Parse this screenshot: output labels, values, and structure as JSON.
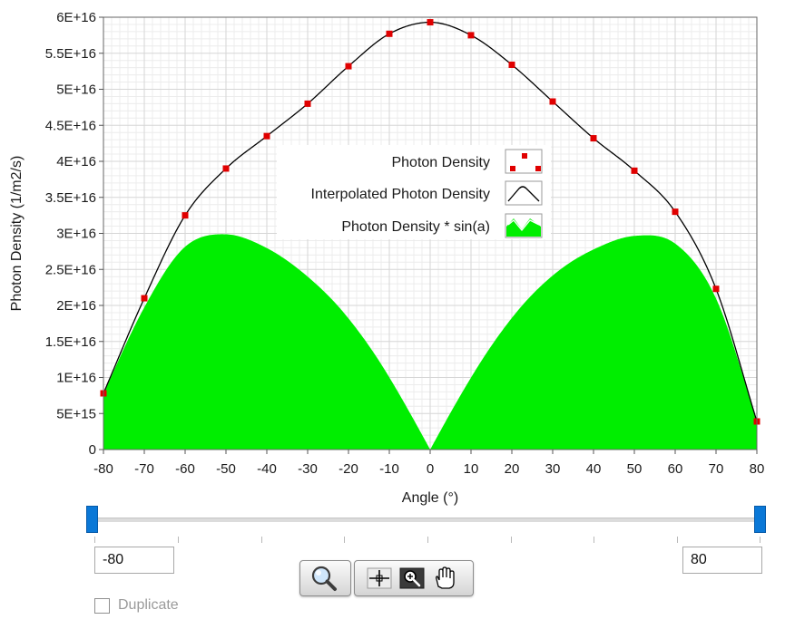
{
  "chart_data": {
    "type": "line",
    "title": "",
    "xlabel": "Angle (°)",
    "ylabel": "Photon Density (1/m2/s)",
    "xlim": [
      -80,
      80
    ],
    "ylim": [
      0,
      6e+16
    ],
    "x_ticks": [
      "-80",
      "-70",
      "-60",
      "-50",
      "-40",
      "-30",
      "-20",
      "-10",
      "0",
      "10",
      "20",
      "30",
      "40",
      "50",
      "60",
      "70",
      "80"
    ],
    "y_ticks": [
      "0",
      "5E+15",
      "1E+16",
      "1.5E+16",
      "2E+16",
      "2.5E+16",
      "3E+16",
      "3.5E+16",
      "4E+16",
      "4.5E+16",
      "5E+16",
      "5.5E+16",
      "6E+16"
    ],
    "grid": true,
    "legend_position": "center",
    "x": [
      -80,
      -70,
      -60,
      -50,
      -40,
      -30,
      -20,
      -10,
      0,
      10,
      20,
      30,
      40,
      50,
      60,
      70,
      80
    ],
    "series": [
      {
        "name": "Photon Density",
        "style": "points",
        "color": "#e00000",
        "values": [
          7800000000000000.0,
          2.1e+16,
          3.25e+16,
          3.9e+16,
          4.35e+16,
          4.8e+16,
          5.32e+16,
          5.77e+16,
          5.93e+16,
          5.75e+16,
          5.34e+16,
          4.83e+16,
          4.32e+16,
          3.87e+16,
          3.3e+16,
          2.23e+16,
          3900000000000000.0
        ]
      },
      {
        "name": "Interpolated Photon Density",
        "style": "line",
        "color": "#000000",
        "values": [
          7800000000000000.0,
          2.1e+16,
          3.25e+16,
          3.9e+16,
          4.35e+16,
          4.8e+16,
          5.32e+16,
          5.77e+16,
          5.93e+16,
          5.75e+16,
          5.34e+16,
          4.83e+16,
          4.32e+16,
          3.87e+16,
          3.3e+16,
          2.23e+16,
          3900000000000000.0
        ]
      },
      {
        "name": "Photon Density * sin(a)",
        "style": "fill",
        "color": "#00ee00"
      }
    ]
  },
  "controls": {
    "range_min": "-80",
    "range_max": "80",
    "duplicate_label": "Duplicate",
    "duplicate_checked": false
  },
  "icons": {
    "zoom": "magnifier-icon",
    "cursor": "crosshair-cursor-icon",
    "zoom_tool": "zoom-tool-icon",
    "pan": "hand-pan-icon"
  }
}
